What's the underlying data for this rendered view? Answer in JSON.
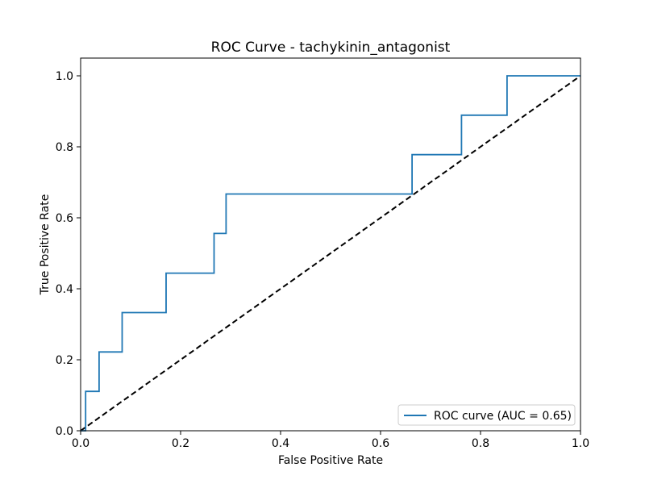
{
  "chart_data": {
    "type": "line",
    "title": "ROC Curve - tachykinin_antagonist",
    "xlabel": "False Positive Rate",
    "ylabel": "True Positive Rate",
    "xlim": [
      0.0,
      1.0
    ],
    "ylim": [
      0.0,
      1.05
    ],
    "grid": false,
    "legend_position": "lower-right",
    "x_ticks": [
      0.0,
      0.2,
      0.4,
      0.6,
      0.8,
      1.0
    ],
    "x_tick_labels": [
      "0.0",
      "0.2",
      "0.4",
      "0.6",
      "0.8",
      "1.0"
    ],
    "y_ticks": [
      0.0,
      0.2,
      0.4,
      0.6,
      0.8,
      1.0
    ],
    "y_tick_labels": [
      "0.0",
      "0.2",
      "0.4",
      "0.6",
      "0.8",
      "1.0"
    ],
    "series": [
      {
        "name": "ROC curve (AUC = 0.65)",
        "color": "#1f77b4",
        "style": "solid",
        "step": true,
        "x": [
          0.0,
          0.01,
          0.01,
          0.037,
          0.037,
          0.083,
          0.083,
          0.171,
          0.171,
          0.267,
          0.267,
          0.291,
          0.291,
          0.663,
          0.663,
          0.762,
          0.762,
          0.853,
          0.853,
          1.0
        ],
        "y": [
          0.0,
          0.0,
          0.111,
          0.111,
          0.222,
          0.222,
          0.333,
          0.333,
          0.444,
          0.444,
          0.556,
          0.556,
          0.667,
          0.667,
          0.778,
          0.778,
          0.889,
          0.889,
          1.0,
          1.0
        ]
      },
      {
        "name": "",
        "color": "#000000",
        "style": "dashed",
        "step": false,
        "x": [
          0.0,
          1.0
        ],
        "y": [
          0.0,
          1.0
        ]
      }
    ],
    "legend": {
      "label": "ROC curve (AUC = 0.65)",
      "color": "#1f77b4"
    }
  }
}
